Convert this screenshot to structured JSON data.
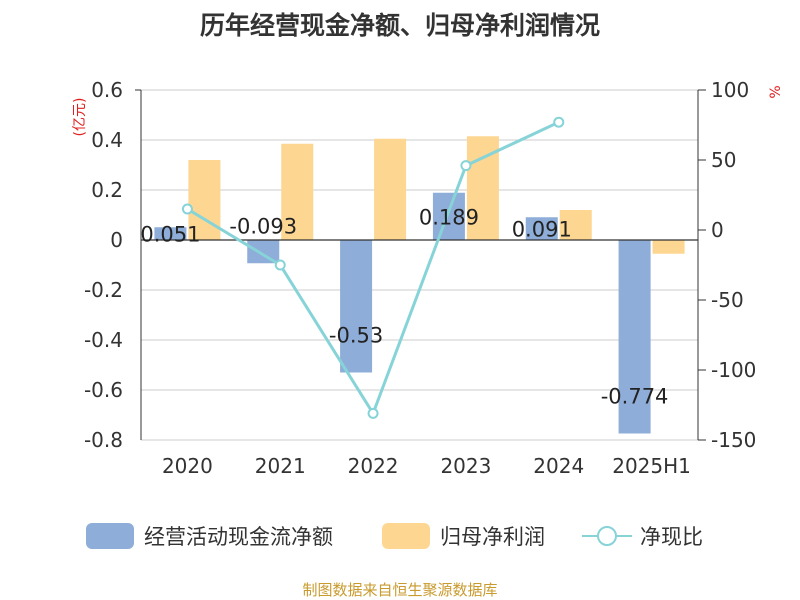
{
  "title": "历年经营现金净额、归母净利润情况",
  "source": "制图数据来自恒生聚源数据库",
  "chart_data": {
    "type": "bar",
    "categories": [
      "2020",
      "2021",
      "2022",
      "2023",
      "2024",
      "2025H1"
    ],
    "left_axis": {
      "unit_label": "(亿元)",
      "ylim": [
        -0.8,
        0.6
      ],
      "ticks": [
        "0.6",
        "0.4",
        "0.2",
        "0",
        "-0.2",
        "-0.4",
        "-0.6",
        "-0.8"
      ]
    },
    "right_axis": {
      "unit_label": "%",
      "ylim": [
        -150,
        100
      ],
      "ticks": [
        "100",
        "50",
        "0",
        "-50",
        "-100",
        "-150"
      ]
    },
    "series": [
      {
        "name": "经营活动现金流净额",
        "type": "bar",
        "axis": "left",
        "color": "#8eadd8",
        "values": [
          0.051,
          -0.093,
          -0.53,
          0.189,
          0.091,
          -0.774
        ],
        "labels": [
          "0.051",
          "-0.093",
          "-0.53",
          "0.189",
          "0.091",
          "-0.774"
        ]
      },
      {
        "name": "归母净利润",
        "type": "bar",
        "axis": "left",
        "color": "#fdd691",
        "values": [
          0.32,
          0.385,
          0.405,
          0.415,
          0.12,
          -0.055
        ]
      },
      {
        "name": "净现比",
        "type": "line",
        "axis": "right",
        "color": "#86d3d8",
        "values": [
          15,
          -25,
          -131,
          46,
          77,
          null
        ]
      }
    ],
    "grid": true,
    "legend_position": "bottom"
  }
}
